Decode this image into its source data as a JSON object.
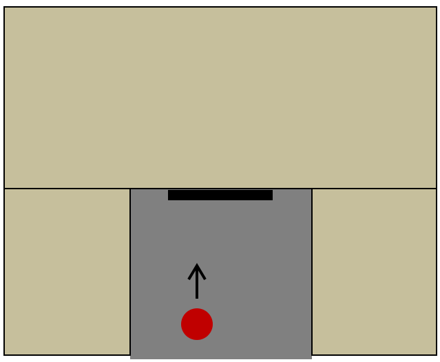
{
  "colors": {
    "background": "#ffffff",
    "wall_fill": "#c6bf9c",
    "corridor_fill": "#808080",
    "outline": "#000000",
    "barrier": "#000000",
    "agent": "#c00000",
    "arrow": "#000000"
  },
  "icons": {
    "agent": "red-circle",
    "direction": "up-arrow-icon"
  },
  "scene": {
    "agent_heading": "up"
  }
}
